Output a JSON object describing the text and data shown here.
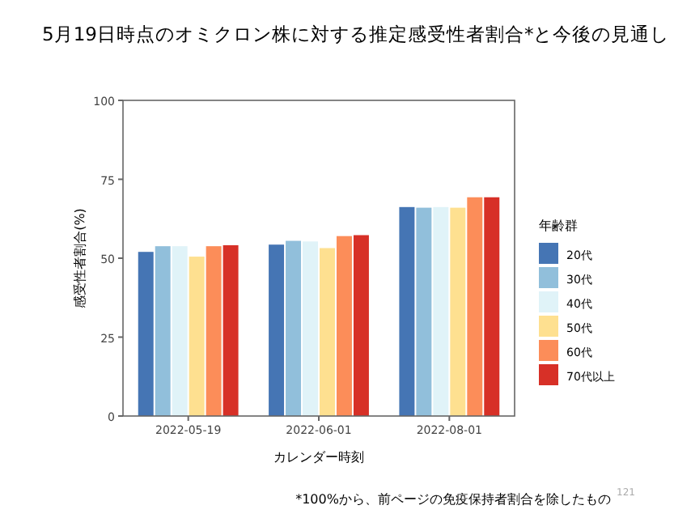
{
  "chart_data": {
    "type": "bar",
    "title": "5月19日時点のオミクロン株に対する推定感受性者割合*と今後の見通し",
    "xlabel": "カレンダー時刻",
    "ylabel": "感受性者割合(%)",
    "legend_title": "年齢群",
    "categories": [
      "2022-05-19",
      "2022-06-01",
      "2022-08-01"
    ],
    "series": [
      {
        "name": "20代",
        "color": "#4575b4",
        "values": [
          52.0,
          54.3,
          66.2
        ]
      },
      {
        "name": "30代",
        "color": "#91bfdb",
        "values": [
          53.8,
          55.5,
          66.0
        ]
      },
      {
        "name": "40代",
        "color": "#e0f3f8",
        "values": [
          53.8,
          55.3,
          66.2
        ]
      },
      {
        "name": "50代",
        "color": "#fee090",
        "values": [
          50.5,
          53.2,
          66.0
        ]
      },
      {
        "name": "60代",
        "color": "#fc8d59",
        "values": [
          53.8,
          57.0,
          69.3
        ]
      },
      {
        "name": "70代以上",
        "color": "#d73027",
        "values": [
          54.1,
          57.3,
          69.3
        ]
      }
    ],
    "ylim": [
      0,
      100
    ],
    "yticks": [
      0,
      25,
      50,
      75,
      100
    ],
    "grid": false,
    "legend": "right",
    "annotations": [
      "*100%から、前ページの免疫保持者割合を除したもの",
      "121"
    ]
  }
}
